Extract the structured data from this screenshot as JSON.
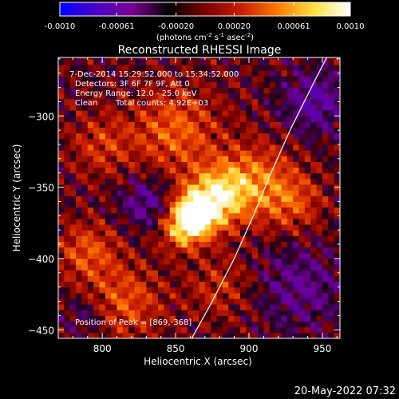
{
  "colorbar": {
    "tick_labels": [
      "-0.0010",
      "-0.00061",
      "-0.00020",
      "0.00020",
      "0.00061",
      "0.0010"
    ],
    "tick_values": [
      -0.001,
      -0.00061,
      -0.0002,
      0.0002,
      0.00061,
      0.001
    ],
    "range": [
      -0.001,
      0.001
    ],
    "units_main": "(photons cm",
    "units_exp1": "-2",
    "units_mid1": " s",
    "units_exp2": "-1",
    "units_mid2": " asec",
    "units_exp3": "-2",
    "units_end": ")",
    "colors": [
      "#0000ff",
      "#4a00c8",
      "#7a0090",
      "#000000",
      "#7a0000",
      "#c81e00",
      "#ff7a00",
      "#ffe040",
      "#ffffff"
    ]
  },
  "chart_data": {
    "type": "heatmap",
    "title": "Reconstructed RHESSI Image",
    "xlabel": "Heliocentric X (arcsec)",
    "ylabel": "Heliocentric Y (arcsec)",
    "xlim": [
      770,
      962
    ],
    "ylim": [
      -456,
      -259
    ],
    "x_ticks": [
      800,
      850,
      900,
      950
    ],
    "y_ticks": [
      -300,
      -350,
      -400,
      -450
    ],
    "annotations": {
      "time_range": "7-Dec-2014 15:29:52.000 to 15:34:52.000",
      "detectors": "Detectors: 3F 6F 7F 9F, Att 0",
      "energy": "Energy Range: 12.0 - 25.0 keV",
      "clean": "Clean",
      "counts": "Total counts: 4.92E+03",
      "peak": "Position of Peak = [869,-368]"
    },
    "peak": [
      869,
      -368
    ],
    "limb_curve": [
      [
        861,
        -456
      ],
      [
        875,
        -430
      ],
      [
        890,
        -400
      ],
      [
        903,
        -370
      ],
      [
        915,
        -340
      ],
      [
        928,
        -310
      ],
      [
        945,
        -275
      ],
      [
        953,
        -259
      ]
    ],
    "sources": [
      {
        "x": 864,
        "y": -368,
        "sigma": 11,
        "amp": 1.0
      },
      {
        "x": 880,
        "y": -355,
        "sigma": 15,
        "amp": 0.7
      },
      {
        "x": 855,
        "y": -380,
        "sigma": 10,
        "amp": 0.55
      },
      {
        "x": 850,
        "y": -310,
        "sigma": 20,
        "amp": 0.45
      },
      {
        "x": 905,
        "y": -345,
        "sigma": 18,
        "amp": 0.45
      },
      {
        "x": 790,
        "y": -395,
        "sigma": 14,
        "amp": 0.4
      },
      {
        "x": 815,
        "y": -430,
        "sigma": 18,
        "amp": 0.4
      },
      {
        "x": 930,
        "y": -360,
        "sigma": 14,
        "amp": 0.35
      },
      {
        "x": 800,
        "y": -320,
        "sigma": 15,
        "amp": 0.3
      },
      {
        "x": 880,
        "y": -420,
        "sigma": 15,
        "amp": 0.25
      },
      {
        "x": 830,
        "y": -360,
        "sigma": 12,
        "amp": -0.35
      },
      {
        "x": 945,
        "y": -290,
        "sigma": 15,
        "amp": -0.4
      },
      {
        "x": 935,
        "y": -420,
        "sigma": 20,
        "amp": -0.3
      },
      {
        "x": 790,
        "y": -440,
        "sigma": 10,
        "amp": -0.25
      }
    ]
  },
  "footer": {
    "date": "20-May-2022 07:32"
  }
}
